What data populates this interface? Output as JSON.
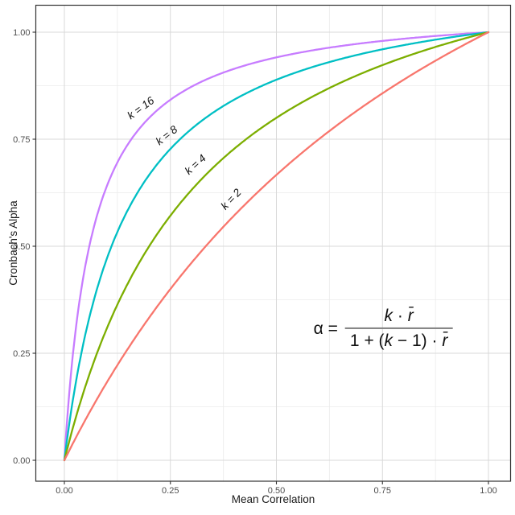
{
  "chart_data": {
    "type": "line",
    "title": "",
    "xlabel": "Mean Correlation",
    "ylabel": "Cronbach's Alpha",
    "xlim": [
      0,
      1
    ],
    "ylim": [
      0,
      1
    ],
    "grid": "major and minor, light gray on white",
    "legend_position": "none (direct curve labels)",
    "x_tick_values": [
      0,
      0.25,
      0.5,
      0.75,
      1
    ],
    "x_tick_labels": [
      "0.00",
      "0.25",
      "0.50",
      "0.75",
      "1.00"
    ],
    "y_tick_values": [
      0,
      0.25,
      0.5,
      0.75,
      1
    ],
    "y_tick_labels": [
      "0.00",
      "0.25",
      "0.50",
      "0.75",
      "1.00"
    ],
    "minor_tick_values": [
      0.125,
      0.375,
      0.625,
      0.875
    ],
    "formula": "alpha = (k * rbar) / (1 + (k - 1) * rbar)",
    "x_sample": [
      0,
      0.02,
      0.05,
      0.1,
      0.15,
      0.2,
      0.25,
      0.3,
      0.35,
      0.4,
      0.45,
      0.5,
      0.55,
      0.6,
      0.65,
      0.7,
      0.75,
      0.8,
      0.85,
      0.9,
      0.95,
      1
    ],
    "series": [
      {
        "name": "k = 16",
        "k": 16,
        "color": "#C77CFF",
        "label": {
          "text": "k = 16",
          "x": 0.18,
          "y": 0.823,
          "angle": -36
        },
        "values": [
          0,
          0.246,
          0.457,
          0.64,
          0.738,
          0.8,
          0.842,
          0.873,
          0.896,
          0.914,
          0.929,
          0.941,
          0.951,
          0.96,
          0.967,
          0.974,
          0.98,
          0.985,
          0.989,
          0.993,
          0.997,
          1
        ]
      },
      {
        "name": "k = 8",
        "k": 8,
        "color": "#00BFC4",
        "label": {
          "text": "k = 8",
          "x": 0.241,
          "y": 0.759,
          "angle": -38
        },
        "values": [
          0,
          0.14,
          0.296,
          0.471,
          0.585,
          0.667,
          0.727,
          0.774,
          0.812,
          0.842,
          0.867,
          0.889,
          0.907,
          0.923,
          0.937,
          0.949,
          0.96,
          0.97,
          0.978,
          0.986,
          0.993,
          1
        ]
      },
      {
        "name": "k = 4",
        "k": 4,
        "color": "#7CAE00",
        "label": {
          "text": "k = 4",
          "x": 0.309,
          "y": 0.691,
          "angle": -42
        },
        "values": [
          0,
          0.075,
          0.174,
          0.308,
          0.414,
          0.5,
          0.571,
          0.632,
          0.683,
          0.727,
          0.766,
          0.8,
          0.83,
          0.857,
          0.881,
          0.903,
          0.923,
          0.941,
          0.958,
          0.973,
          0.987,
          1
        ]
      },
      {
        "name": "k = 2",
        "k": 2,
        "color": "#F8766D",
        "label": {
          "text": "k = 2",
          "x": 0.393,
          "y": 0.61,
          "angle": -47
        },
        "values": [
          0,
          0.039,
          0.095,
          0.182,
          0.261,
          0.333,
          0.4,
          0.462,
          0.519,
          0.571,
          0.621,
          0.667,
          0.71,
          0.75,
          0.788,
          0.824,
          0.857,
          0.889,
          0.919,
          0.947,
          0.974,
          1
        ]
      }
    ],
    "annotation": {
      "lhs": "α =",
      "numerator": "k · r̄",
      "denominator": "1 + (k − 1) · r̄"
    },
    "colors": {
      "panel_border": "#333333",
      "grid_major": "#d9d9d9",
      "grid_minor": "#ebebeb",
      "tick_label": "#4d4d4d",
      "axis_title": "#1a1a1a",
      "curve_label": "#111111",
      "fraction_bar": "#7f7f7f",
      "background": "#ffffff"
    }
  }
}
